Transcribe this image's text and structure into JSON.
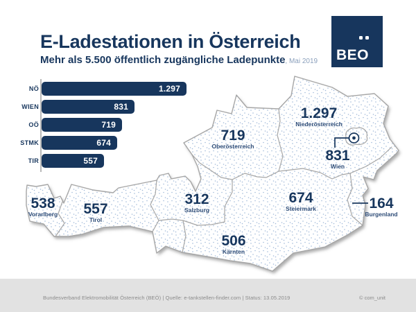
{
  "header": {
    "title": "E-Ladestationen in Österreich",
    "subtitle": "Mehr als 5.500 öffentlich zugängliche Ladepunkte",
    "subtitle_suffix": ", Mai 2019"
  },
  "logo": {
    "letters": "BEO",
    "brand": "BEÖ"
  },
  "chart_data": {
    "type": "bar",
    "orientation": "horizontal",
    "categories": [
      "NÖ",
      "WIEN",
      "OÖ",
      "STMK",
      "TIR"
    ],
    "values": [
      1297,
      831,
      719,
      674,
      557
    ],
    "value_labels": [
      "1.297",
      "831",
      "719",
      "674",
      "557"
    ],
    "xlim": [
      0,
      1297
    ],
    "bar_color": "#17365d",
    "grid": false,
    "legend": false
  },
  "map": {
    "country": "Österreich",
    "regions": [
      {
        "name": "Niederösterreich",
        "value": "1.297"
      },
      {
        "name": "Wien",
        "value": "831"
      },
      {
        "name": "Oberösterreich",
        "value": "719"
      },
      {
        "name": "Salzburg",
        "value": "312"
      },
      {
        "name": "Tirol",
        "value": "557"
      },
      {
        "name": "Vorarlberg",
        "value": "538"
      },
      {
        "name": "Steiermark",
        "value": "674"
      },
      {
        "name": "Kärnten",
        "value": "506"
      },
      {
        "name": "Burgenland",
        "value": "164"
      }
    ]
  },
  "footer": {
    "left": "Bundesverband Elektromobilität Österreich (BEÖ) | Quelle: e-tankstellen-finder.com | Status: 13.05.2019",
    "right": "© com_unit"
  },
  "colors": {
    "navy": "#17365d",
    "dot_blue": "#9fb8d8",
    "border_gray": "#a6a6a6",
    "footer_bg": "#e2e2e2"
  }
}
